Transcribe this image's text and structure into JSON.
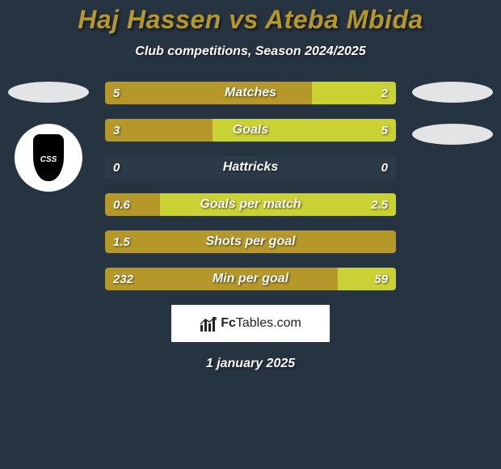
{
  "title_color": "#b59829",
  "background_color": "#263340",
  "player_left": "Haj Hassen",
  "player_right": "Ateba Mbida",
  "subtitle": "Club competitions, Season 2024/2025",
  "left_color": "#b59829",
  "right_color": "#c9d133",
  "empty_color": "#2c3a48",
  "bars": [
    {
      "label": "Matches",
      "left_val": "5",
      "right_val": "2",
      "left_pct": 71,
      "right_pct": 29
    },
    {
      "label": "Goals",
      "left_val": "3",
      "right_val": "5",
      "left_pct": 37,
      "right_pct": 63
    },
    {
      "label": "Hattricks",
      "left_val": "0",
      "right_val": "0",
      "left_pct": 0,
      "right_pct": 0
    },
    {
      "label": "Goals per match",
      "left_val": "0.6",
      "right_val": "2.5",
      "left_pct": 19,
      "right_pct": 81
    },
    {
      "label": "Shots per goal",
      "left_val": "1.5",
      "right_val": "",
      "left_pct": 100,
      "right_pct": 0
    },
    {
      "label": "Min per goal",
      "left_val": "232",
      "right_val": "59",
      "left_pct": 80,
      "right_pct": 20
    }
  ],
  "crest_text": "CSS",
  "brand": {
    "prefix": "Fc",
    "suffix": "Tables.com"
  },
  "date": "1 january 2025"
}
